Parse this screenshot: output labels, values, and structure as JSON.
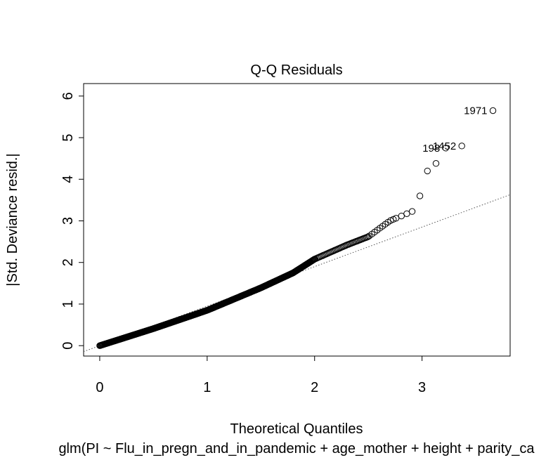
{
  "chart_data": {
    "type": "scatter",
    "title": "Q-Q Residuals",
    "xlabel": "Theoretical Quantiles",
    "ylabel": "|Std. Deviance resid.|",
    "caption": "glm(PI ~ Flu_in_pregn_and_in_pandemic + age_mother + height + parity_ca",
    "xlim": [
      -0.15,
      3.82
    ],
    "ylim": [
      -0.25,
      6.3
    ],
    "x_ticks": [
      "0",
      "1",
      "2",
      "3"
    ],
    "y_ticks": [
      "0",
      "1",
      "2",
      "3",
      "4",
      "5",
      "6"
    ],
    "grid": false,
    "legend": "none",
    "colors": {
      "points": "#000000",
      "reference_line": "#555555",
      "frame": "#000000"
    },
    "reference_line": {
      "intercept": 0.0,
      "slope": 0.95,
      "style": "dotted"
    },
    "curve": [
      [
        0.0,
        0.0
      ],
      [
        0.5,
        0.41
      ],
      [
        1.0,
        0.85
      ],
      [
        1.5,
        1.39
      ],
      [
        1.8,
        1.75
      ],
      [
        2.0,
        2.08
      ],
      [
        2.3,
        2.42
      ],
      [
        2.5,
        2.62
      ],
      [
        2.7,
        3.0
      ],
      [
        2.93,
        3.25
      ]
    ],
    "outliers": [
      {
        "x": 2.98,
        "y": 3.6,
        "label": ""
      },
      {
        "x": 3.05,
        "y": 4.2,
        "label": ""
      },
      {
        "x": 3.13,
        "y": 4.38,
        "label": ""
      },
      {
        "x": 3.22,
        "y": 4.75,
        "label": "198"
      },
      {
        "x": 3.37,
        "y": 4.8,
        "label": "1452"
      },
      {
        "x": 3.66,
        "y": 5.65,
        "label": "1971"
      }
    ]
  }
}
